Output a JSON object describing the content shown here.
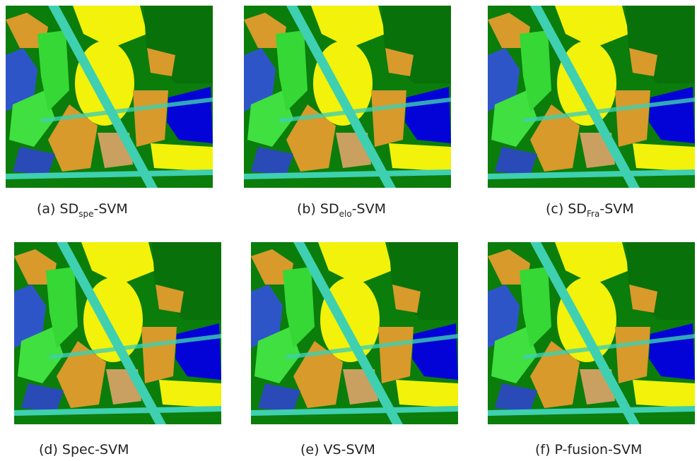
{
  "figure": {
    "panels": [
      {
        "caption": "(a) SD",
        "sub": "spe",
        "suffix": "-SVM"
      },
      {
        "caption": "(b) SD",
        "sub": "elo",
        "suffix": "-SVM"
      },
      {
        "caption": "(c) SD",
        "sub": "Fra",
        "suffix": "-SVM"
      },
      {
        "caption": "(d) Spec-SVM"
      },
      {
        "caption": "(e) VS-SVM"
      },
      {
        "caption": "(f) P-fusion-SVM"
      }
    ]
  }
}
